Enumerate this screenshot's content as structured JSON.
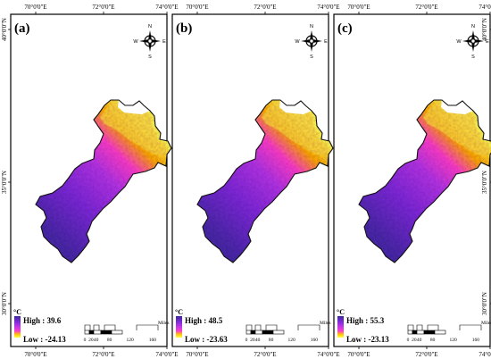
{
  "axes": {
    "top_ticks": [
      "70°0'0\"E",
      "72°0'0\"E",
      "74°0'0\"E"
    ],
    "bottom_ticks": [
      "70°0'0\"E",
      "72°0'0\"E",
      "74°0'0\"E"
    ],
    "left_ticks": [
      "40°0'0\"N",
      "35°0'0\"N",
      "30°0'0\"N"
    ],
    "right_ticks": [
      "40°0'0\"N",
      "35°0'0\"N",
      "30°0'0\"N"
    ]
  },
  "compass": {
    "north": "N",
    "south": "S",
    "east": "E",
    "west": "W"
  },
  "scale_bar": {
    "ticks": [
      "0",
      "20",
      "40",
      "80",
      "120",
      "160"
    ],
    "unit": "Miles"
  },
  "legend_colors": [
    "#3c2a98",
    "#7a2ad8",
    "#c438e8",
    "#ff3fc8",
    "#ffc400",
    "#ffff4a"
  ],
  "panels": [
    {
      "label": "(a)",
      "unit": "°C",
      "high": "High : 39.6",
      "low": "Low : -24.13"
    },
    {
      "label": "(b)",
      "unit": "°C",
      "high": "High : 48.5",
      "low": "Low : -23.63"
    },
    {
      "label": "(c)",
      "unit": "°C",
      "high": "High : 55.3",
      "low": "Low : -23.13"
    }
  ]
}
